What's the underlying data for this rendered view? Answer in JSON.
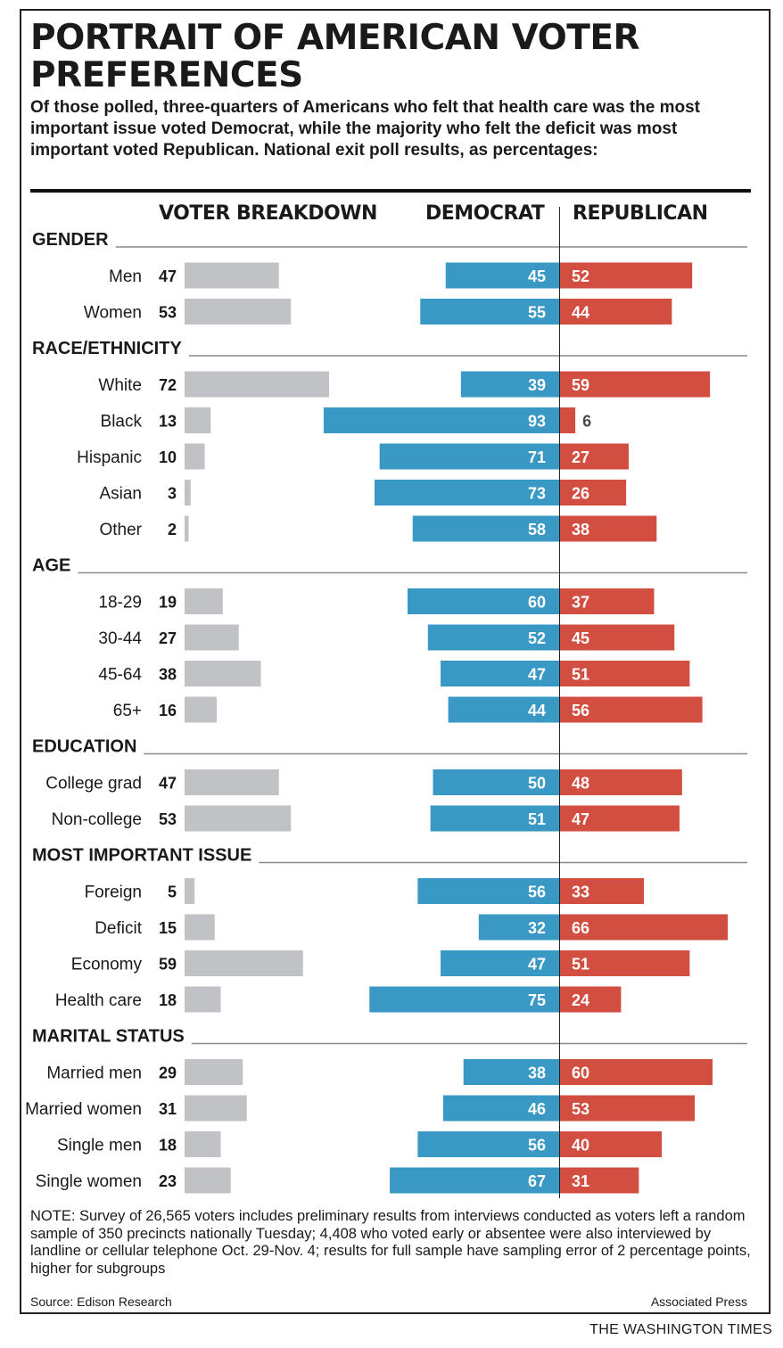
{
  "title": "PORTRAIT OF AMERICAN VOTER PREFERENCES",
  "subtitle": "Of those polled, three-quarters of Americans who felt that health care was the most important issue voted Democrat, while the majority who felt the deficit was most important voted Republican. National exit poll results, as percentages:",
  "column_headers": {
    "breakdown": "VOTER BREAKDOWN",
    "democrat": "DEMOCRAT",
    "republican": "REPUBLICAN"
  },
  "colors": {
    "breakdown": "#c0c2c6",
    "democrat": "#3a98c4",
    "republican": "#d24e40",
    "rules": "#8a8a8a"
  },
  "chart_data": {
    "type": "bar",
    "series_names": [
      "VOTER BREAKDOWN",
      "DEMOCRAT",
      "REPUBLICAN"
    ],
    "unit": "percent",
    "sections": [
      {
        "name": "GENDER",
        "rows": [
          {
            "label": "Men",
            "breakdown": 47,
            "democrat": 45,
            "republican": 52
          },
          {
            "label": "Women",
            "breakdown": 53,
            "democrat": 55,
            "republican": 44
          }
        ]
      },
      {
        "name": "RACE/ETHNICITY",
        "rows": [
          {
            "label": "White",
            "breakdown": 72,
            "democrat": 39,
            "republican": 59
          },
          {
            "label": "Black",
            "breakdown": 13,
            "democrat": 93,
            "republican": 6
          },
          {
            "label": "Hispanic",
            "breakdown": 10,
            "democrat": 71,
            "republican": 27
          },
          {
            "label": "Asian",
            "breakdown": 3,
            "democrat": 73,
            "republican": 26
          },
          {
            "label": "Other",
            "breakdown": 2,
            "democrat": 58,
            "republican": 38
          }
        ]
      },
      {
        "name": "AGE",
        "rows": [
          {
            "label": "18-29",
            "breakdown": 19,
            "democrat": 60,
            "republican": 37
          },
          {
            "label": "30-44",
            "breakdown": 27,
            "democrat": 52,
            "republican": 45
          },
          {
            "label": "45-64",
            "breakdown": 38,
            "democrat": 47,
            "republican": 51
          },
          {
            "label": "65+",
            "breakdown": 16,
            "democrat": 44,
            "republican": 56
          }
        ]
      },
      {
        "name": "EDUCATION",
        "rows": [
          {
            "label": "College grad",
            "breakdown": 47,
            "democrat": 50,
            "republican": 48
          },
          {
            "label": "Non-college",
            "breakdown": 53,
            "democrat": 51,
            "republican": 47
          }
        ]
      },
      {
        "name": "MOST IMPORTANT ISSUE",
        "rows": [
          {
            "label": "Foreign",
            "breakdown": 5,
            "democrat": 56,
            "republican": 33
          },
          {
            "label": "Deficit",
            "breakdown": 15,
            "democrat": 32,
            "republican": 66
          },
          {
            "label": "Economy",
            "breakdown": 59,
            "democrat": 47,
            "republican": 51
          },
          {
            "label": "Health care",
            "breakdown": 18,
            "democrat": 75,
            "republican": 24
          }
        ]
      },
      {
        "name": "MARITAL STATUS",
        "rows": [
          {
            "label": "Married men",
            "breakdown": 29,
            "democrat": 38,
            "republican": 60
          },
          {
            "label": "Married women",
            "breakdown": 31,
            "democrat": 46,
            "republican": 53
          },
          {
            "label": "Single men",
            "breakdown": 18,
            "democrat": 56,
            "republican": 40
          },
          {
            "label": "Single women",
            "breakdown": 23,
            "democrat": 67,
            "republican": 31
          }
        ]
      }
    ]
  },
  "note": "NOTE: Survey of 26,565 voters includes preliminary results from interviews conducted as voters left a random sample of 350 precincts nationally Tuesday; 4,408 who voted early or absentee were also interviewed by landline or cellular telephone Oct. 29-Nov. 4; results for full sample have sampling error of 2 percentage points, higher for subgroups",
  "source": "Source: Edison Research",
  "credit": "Associated Press",
  "publisher": "THE WASHINGTON TIMES"
}
